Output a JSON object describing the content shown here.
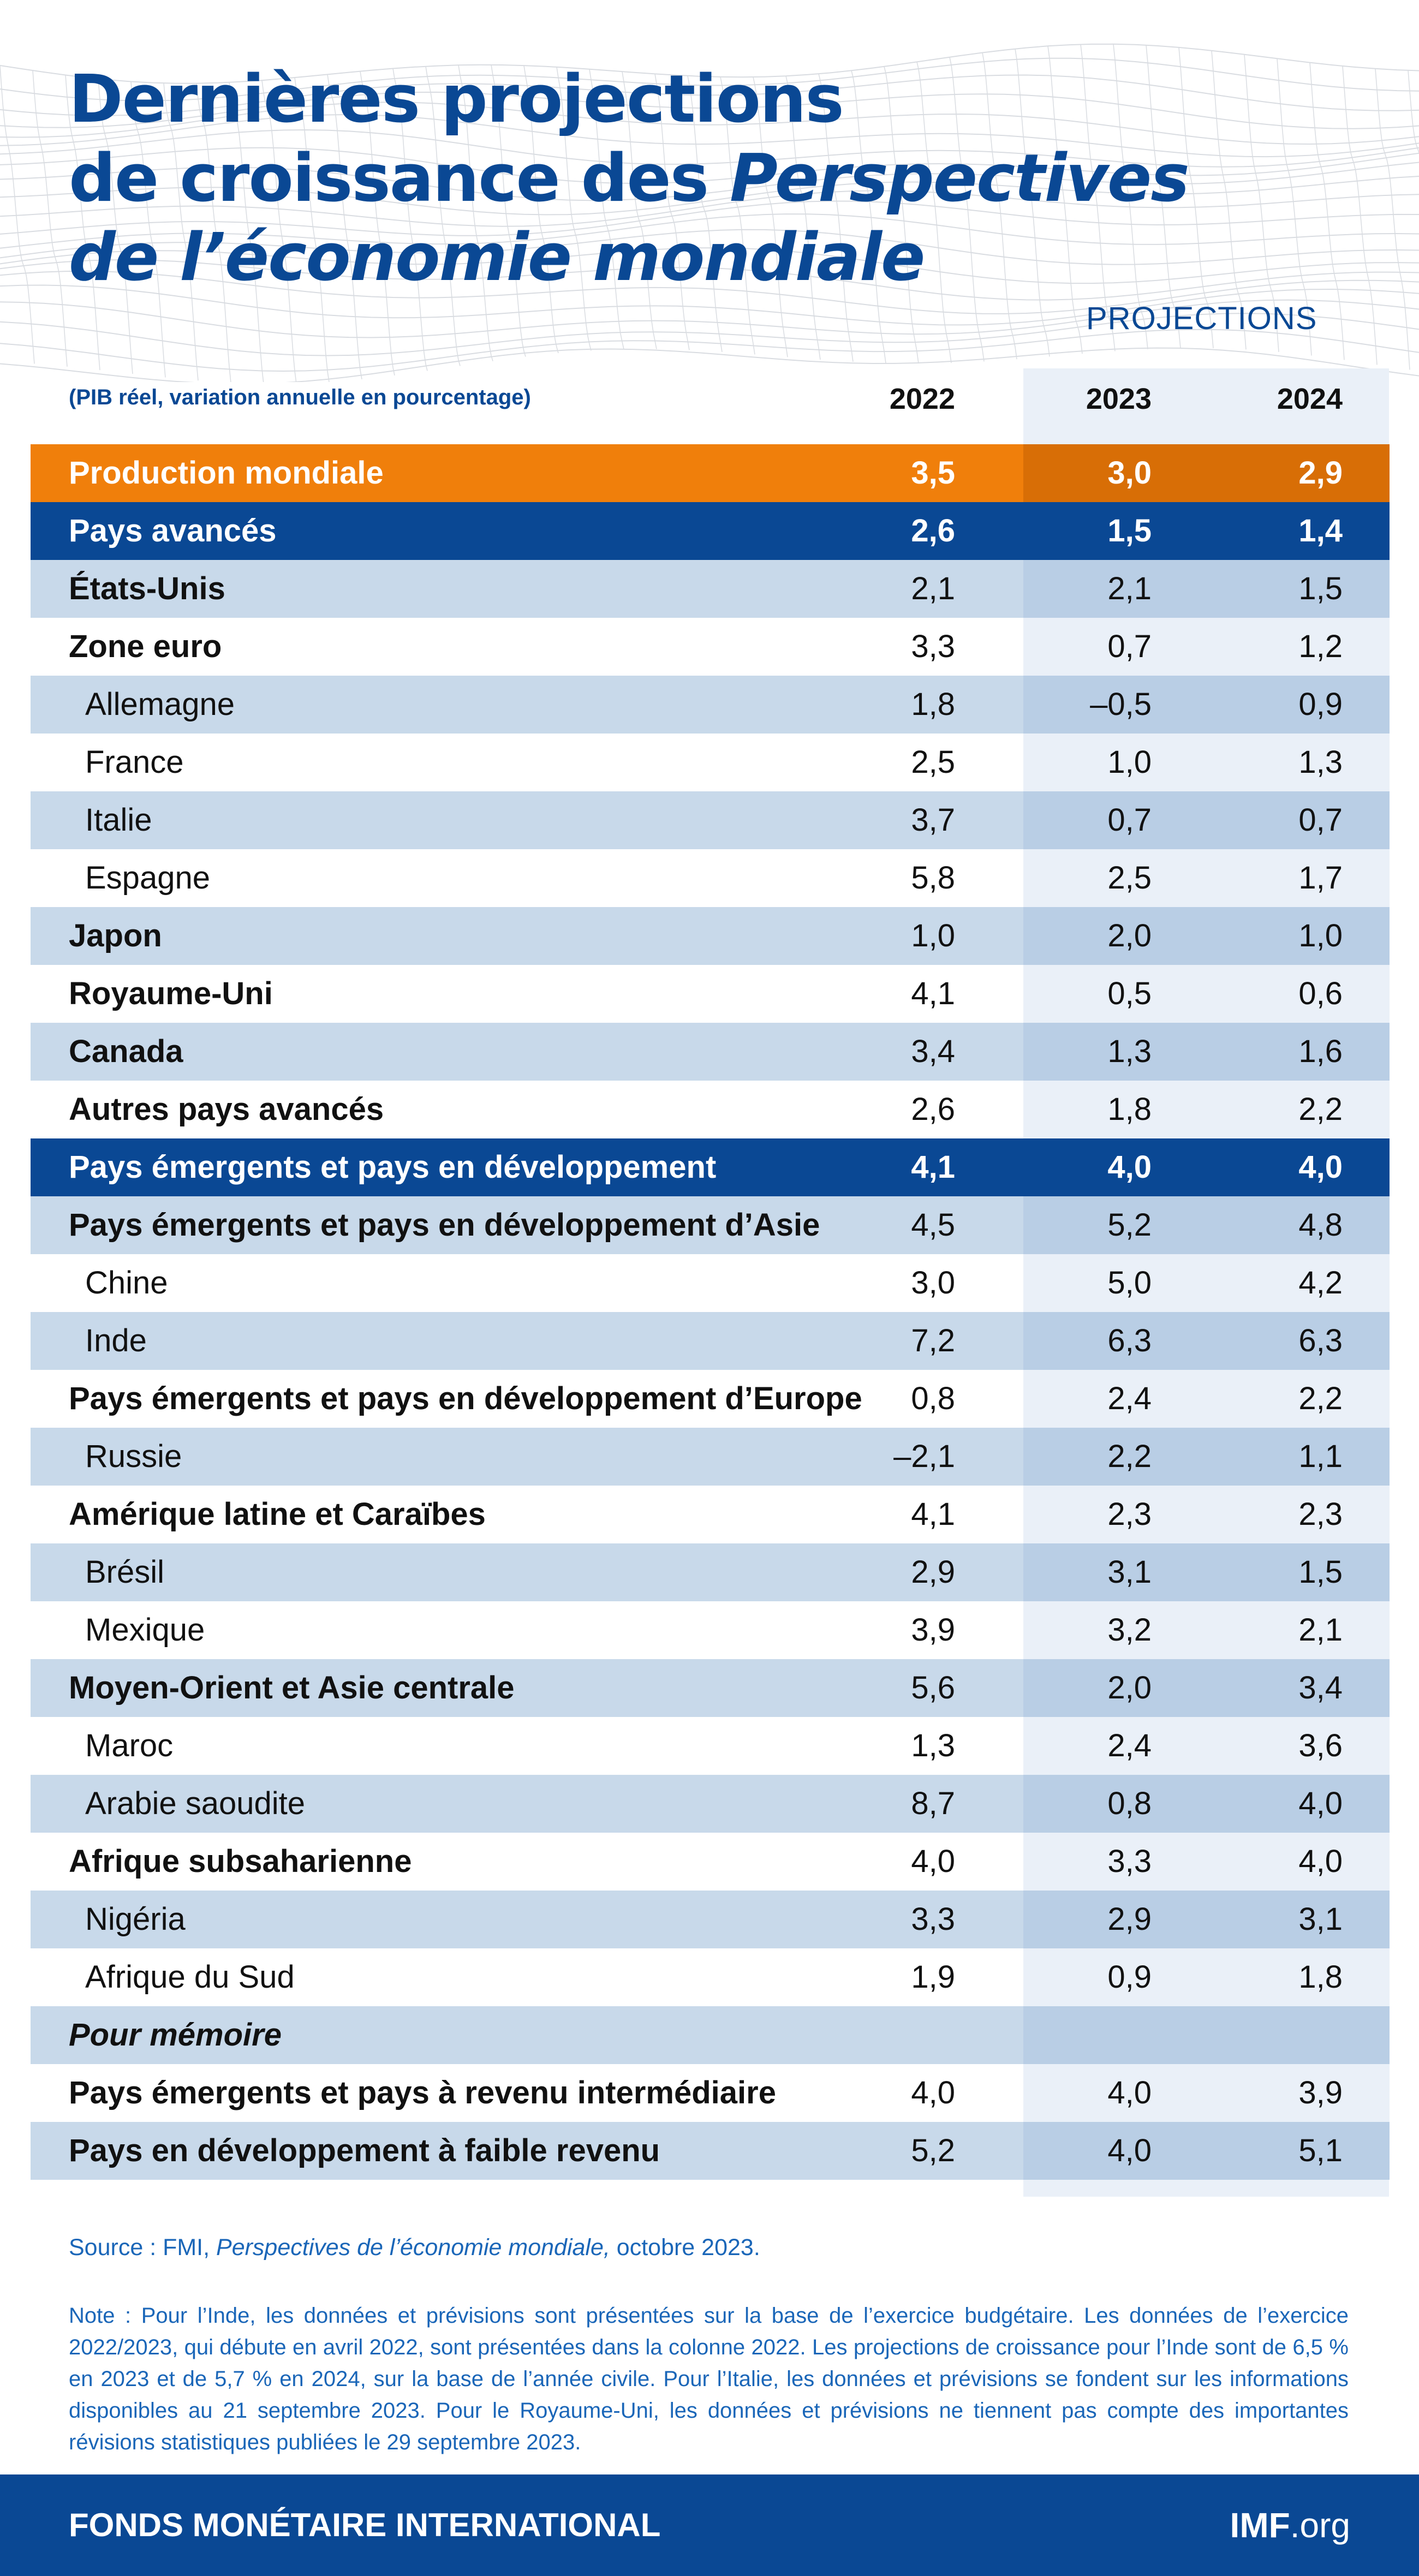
{
  "header": {
    "title_line1": "Dernières projections",
    "title_line2_a": "de croissance des ",
    "title_line2_b": "Perspectives",
    "title_line3": "de l’économie mondiale",
    "projections_label": "PROJECTIONS",
    "subtitle": "(PIB réel, variation annuelle en pourcentage)",
    "years": [
      "2022",
      "2023",
      "2024"
    ]
  },
  "rows": [
    {
      "label": "Production mondiale",
      "v2022": "3,5",
      "v2023": "3,0",
      "v2024": "2,9",
      "style": "orange"
    },
    {
      "label": "Pays avancés",
      "v2022": "2,6",
      "v2023": "1,5",
      "v2024": "1,4",
      "style": "dark"
    },
    {
      "label": "États-Unis",
      "v2022": "2,1",
      "v2023": "2,1",
      "v2024": "1,5",
      "style": "light",
      "bold": true
    },
    {
      "label": "Zone euro",
      "v2022": "3,3",
      "v2023": "0,7",
      "v2024": "1,2",
      "style": "white",
      "bold": true
    },
    {
      "label": "Allemagne",
      "v2022": "1,8",
      "v2023": "–0,5",
      "v2024": "0,9",
      "style": "light",
      "indent": true
    },
    {
      "label": "France",
      "v2022": "2,5",
      "v2023": "1,0",
      "v2024": "1,3",
      "style": "white",
      "indent": true
    },
    {
      "label": "Italie",
      "v2022": "3,7",
      "v2023": "0,7",
      "v2024": "0,7",
      "style": "light",
      "indent": true
    },
    {
      "label": "Espagne",
      "v2022": "5,8",
      "v2023": "2,5",
      "v2024": "1,7",
      "style": "white",
      "indent": true
    },
    {
      "label": "Japon",
      "v2022": "1,0",
      "v2023": "2,0",
      "v2024": "1,0",
      "style": "light",
      "bold": true
    },
    {
      "label": "Royaume-Uni",
      "v2022": "4,1",
      "v2023": "0,5",
      "v2024": "0,6",
      "style": "white",
      "bold": true
    },
    {
      "label": "Canada",
      "v2022": "3,4",
      "v2023": "1,3",
      "v2024": "1,6",
      "style": "light",
      "bold": true
    },
    {
      "label": "Autres pays avancés",
      "v2022": "2,6",
      "v2023": "1,8",
      "v2024": "2,2",
      "style": "white",
      "bold": true
    },
    {
      "label": "Pays émergents et pays en développement",
      "v2022": "4,1",
      "v2023": "4,0",
      "v2024": "4,0",
      "style": "dark"
    },
    {
      "label": "Pays émergents et pays en développement d’Asie",
      "v2022": "4,5",
      "v2023": "5,2",
      "v2024": "4,8",
      "style": "light",
      "bold": true
    },
    {
      "label": "Chine",
      "v2022": "3,0",
      "v2023": "5,0",
      "v2024": "4,2",
      "style": "white",
      "indent": true
    },
    {
      "label": "Inde",
      "v2022": "7,2",
      "v2023": "6,3",
      "v2024": "6,3",
      "style": "light",
      "indent": true
    },
    {
      "label": "Pays émergents et pays en développement d’Europe",
      "v2022": "0,8",
      "v2023": "2,4",
      "v2024": "2,2",
      "style": "white",
      "bold": true
    },
    {
      "label": "Russie",
      "v2022": "–2,1",
      "v2023": "2,2",
      "v2024": "1,1",
      "style": "light",
      "indent": true
    },
    {
      "label": "Amérique latine et Caraïbes",
      "v2022": "4,1",
      "v2023": "2,3",
      "v2024": "2,3",
      "style": "white",
      "bold": true
    },
    {
      "label": "Brésil",
      "v2022": "2,9",
      "v2023": "3,1",
      "v2024": "1,5",
      "style": "light",
      "indent": true
    },
    {
      "label": "Mexique",
      "v2022": "3,9",
      "v2023": "3,2",
      "v2024": "2,1",
      "style": "white",
      "indent": true
    },
    {
      "label": "Moyen-Orient et Asie centrale",
      "v2022": "5,6",
      "v2023": "2,0",
      "v2024": "3,4",
      "style": "light",
      "bold": true
    },
    {
      "label": "Maroc",
      "v2022": "1,3",
      "v2023": "2,4",
      "v2024": "3,6",
      "style": "white",
      "indent": true
    },
    {
      "label": "Arabie saoudite",
      "v2022": "8,7",
      "v2023": "0,8",
      "v2024": "4,0",
      "style": "light",
      "indent": true
    },
    {
      "label": "Afrique subsaharienne",
      "v2022": "4,0",
      "v2023": "3,3",
      "v2024": "4,0",
      "style": "white",
      "bold": true
    },
    {
      "label": "Nigéria",
      "v2022": "3,3",
      "v2023": "2,9",
      "v2024": "3,1",
      "style": "light",
      "indent": true
    },
    {
      "label": "Afrique du Sud",
      "v2022": "1,9",
      "v2023": "0,9",
      "v2024": "1,8",
      "style": "white",
      "indent": true
    },
    {
      "label": "Pour mémoire",
      "v2022": "",
      "v2023": "",
      "v2024": "",
      "style": "light",
      "italic": true
    },
    {
      "label": "Pays émergents et pays à revenu intermédiaire",
      "v2022": "4,0",
      "v2023": "4,0",
      "v2024": "3,9",
      "style": "white",
      "bold": true
    },
    {
      "label": "Pays en développement à faible revenu",
      "v2022": "5,2",
      "v2023": "4,0",
      "v2024": "5,1",
      "style": "light",
      "bold": true
    }
  ],
  "source": {
    "prefix": "Source : FMI, ",
    "publication": "Perspectives de l’économie mondiale,",
    "suffix": " octobre 2023."
  },
  "note": "Note : Pour l’Inde, les données et prévisions sont présentées sur la base de l’exercice budgétaire. Les données de l’exercice 2022/2023, qui débute en avril 2022, sont présentées dans la colonne 2022. Les projections de croissance pour l’Inde sont de 6,5 % en 2023 et de 5,7 % en 2024, sur la base de l’année civile. Pour l’Italie, les données et prévisions se fondent sur les informations disponibles au 21 septembre 2023. Pour le Royaume-Uni, les données et prévisions ne tiennent pas compte des importantes révisions statistiques publiées le 29 septembre 2023.",
  "footer": {
    "organization": "FONDS MONÉTAIRE INTERNATIONAL",
    "site_bold": "IMF",
    "site_rest": ".org"
  },
  "colors": {
    "brand_blue": "#0a4894",
    "orange": "#f07f0b",
    "row_light": "#c8d9ea",
    "text_blue": "#1a66b8"
  }
}
